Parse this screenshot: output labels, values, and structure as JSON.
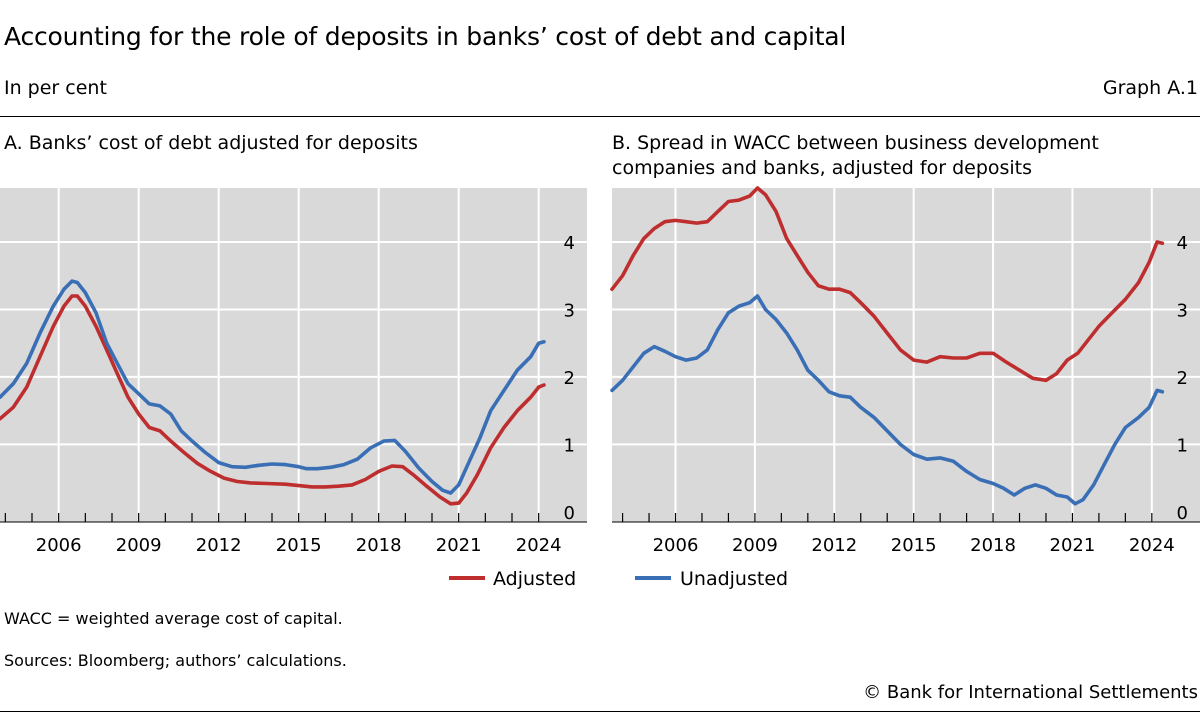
{
  "header": {
    "title": "Accounting for the role of deposits in banks’ cost of debt and capital",
    "subtitle": "In per cent",
    "graph_id": "Graph A.1"
  },
  "colors": {
    "adjusted": "#bf2e2e",
    "unadjusted": "#3a6fb5",
    "panel_bg": "#d9d9d9",
    "grid": "#ffffff"
  },
  "legend": {
    "adjusted_label": "Adjusted",
    "unadjusted_label": "Unadjusted"
  },
  "footer": {
    "note": "WACC = weighted average cost of capital.",
    "sources": "Sources: Bloomberg; authors’ calculations.",
    "copyright": "© Bank for International Settlements"
  },
  "chart_data": [
    {
      "type": "line",
      "title": "A. Banks’ cost of debt adjusted for deposits",
      "xlim": [
        2003.8,
        2024.8
      ],
      "ylim": [
        -0.15,
        4.8
      ],
      "xticks": [
        2006,
        2009,
        2012,
        2015,
        2018,
        2021,
        2024
      ],
      "yticks": [
        0,
        1,
        2,
        3,
        4
      ],
      "grid": true,
      "series": [
        {
          "name": "Adjusted",
          "points": [
            [
              2003.8,
              1.38
            ],
            [
              2004.3,
              1.55
            ],
            [
              2004.8,
              1.85
            ],
            [
              2005.3,
              2.3
            ],
            [
              2005.8,
              2.75
            ],
            [
              2006.2,
              3.05
            ],
            [
              2006.5,
              3.2
            ],
            [
              2006.7,
              3.2
            ],
            [
              2007.0,
              3.05
            ],
            [
              2007.4,
              2.75
            ],
            [
              2007.8,
              2.4
            ],
            [
              2008.2,
              2.05
            ],
            [
              2008.6,
              1.7
            ],
            [
              2009.0,
              1.45
            ],
            [
              2009.4,
              1.25
            ],
            [
              2009.8,
              1.2
            ],
            [
              2010.2,
              1.05
            ],
            [
              2010.7,
              0.88
            ],
            [
              2011.2,
              0.72
            ],
            [
              2011.7,
              0.6
            ],
            [
              2012.2,
              0.5
            ],
            [
              2012.7,
              0.45
            ],
            [
              2013.2,
              0.43
            ],
            [
              2013.8,
              0.42
            ],
            [
              2014.5,
              0.41
            ],
            [
              2015.0,
              0.39
            ],
            [
              2015.5,
              0.37
            ],
            [
              2016.0,
              0.37
            ],
            [
              2016.5,
              0.38
            ],
            [
              2017.0,
              0.4
            ],
            [
              2017.5,
              0.48
            ],
            [
              2018.0,
              0.6
            ],
            [
              2018.5,
              0.68
            ],
            [
              2018.9,
              0.67
            ],
            [
              2019.3,
              0.55
            ],
            [
              2019.8,
              0.38
            ],
            [
              2020.3,
              0.22
            ],
            [
              2020.7,
              0.12
            ],
            [
              2021.0,
              0.13
            ],
            [
              2021.3,
              0.28
            ],
            [
              2021.7,
              0.55
            ],
            [
              2022.2,
              0.95
            ],
            [
              2022.7,
              1.25
            ],
            [
              2023.2,
              1.5
            ],
            [
              2023.7,
              1.7
            ],
            [
              2024.0,
              1.85
            ],
            [
              2024.2,
              1.88
            ]
          ]
        },
        {
          "name": "Unadjusted",
          "points": [
            [
              2003.8,
              1.7
            ],
            [
              2004.3,
              1.9
            ],
            [
              2004.8,
              2.2
            ],
            [
              2005.3,
              2.65
            ],
            [
              2005.8,
              3.05
            ],
            [
              2006.2,
              3.3
            ],
            [
              2006.5,
              3.42
            ],
            [
              2006.7,
              3.4
            ],
            [
              2007.0,
              3.25
            ],
            [
              2007.4,
              2.95
            ],
            [
              2007.8,
              2.5
            ],
            [
              2008.2,
              2.2
            ],
            [
              2008.6,
              1.9
            ],
            [
              2009.0,
              1.75
            ],
            [
              2009.4,
              1.6
            ],
            [
              2009.8,
              1.57
            ],
            [
              2010.2,
              1.45
            ],
            [
              2010.6,
              1.2
            ],
            [
              2011.0,
              1.05
            ],
            [
              2011.5,
              0.88
            ],
            [
              2012.0,
              0.73
            ],
            [
              2012.5,
              0.67
            ],
            [
              2013.0,
              0.66
            ],
            [
              2013.5,
              0.69
            ],
            [
              2014.0,
              0.71
            ],
            [
              2014.5,
              0.7
            ],
            [
              2015.0,
              0.67
            ],
            [
              2015.3,
              0.64
            ],
            [
              2015.7,
              0.64
            ],
            [
              2016.2,
              0.66
            ],
            [
              2016.7,
              0.7
            ],
            [
              2017.2,
              0.78
            ],
            [
              2017.7,
              0.95
            ],
            [
              2018.2,
              1.05
            ],
            [
              2018.6,
              1.06
            ],
            [
              2019.0,
              0.9
            ],
            [
              2019.5,
              0.65
            ],
            [
              2020.0,
              0.45
            ],
            [
              2020.4,
              0.32
            ],
            [
              2020.7,
              0.28
            ],
            [
              2021.0,
              0.4
            ],
            [
              2021.4,
              0.75
            ],
            [
              2021.8,
              1.1
            ],
            [
              2022.2,
              1.5
            ],
            [
              2022.7,
              1.8
            ],
            [
              2023.2,
              2.1
            ],
            [
              2023.7,
              2.3
            ],
            [
              2024.0,
              2.5
            ],
            [
              2024.2,
              2.52
            ]
          ]
        }
      ]
    },
    {
      "type": "line",
      "title": "B. Spread in WACC between business development companies and banks, adjusted for deposits",
      "xlim": [
        2003.6,
        2024.8
      ],
      "ylim": [
        -0.15,
        4.8
      ],
      "xticks": [
        2006,
        2009,
        2012,
        2015,
        2018,
        2021,
        2024
      ],
      "yticks": [
        0,
        1,
        2,
        3,
        4
      ],
      "grid": true,
      "series": [
        {
          "name": "Adjusted",
          "points": [
            [
              2003.6,
              3.3
            ],
            [
              2004.0,
              3.5
            ],
            [
              2004.4,
              3.8
            ],
            [
              2004.8,
              4.05
            ],
            [
              2005.2,
              4.2
            ],
            [
              2005.6,
              4.3
            ],
            [
              2006.0,
              4.32
            ],
            [
              2006.4,
              4.3
            ],
            [
              2006.8,
              4.28
            ],
            [
              2007.2,
              4.3
            ],
            [
              2007.6,
              4.45
            ],
            [
              2008.0,
              4.6
            ],
            [
              2008.4,
              4.62
            ],
            [
              2008.8,
              4.68
            ],
            [
              2009.1,
              4.8
            ],
            [
              2009.4,
              4.7
            ],
            [
              2009.8,
              4.45
            ],
            [
              2010.2,
              4.05
            ],
            [
              2010.6,
              3.8
            ],
            [
              2011.0,
              3.55
            ],
            [
              2011.4,
              3.35
            ],
            [
              2011.8,
              3.3
            ],
            [
              2012.2,
              3.3
            ],
            [
              2012.6,
              3.25
            ],
            [
              2013.0,
              3.1
            ],
            [
              2013.5,
              2.9
            ],
            [
              2014.0,
              2.65
            ],
            [
              2014.5,
              2.4
            ],
            [
              2015.0,
              2.25
            ],
            [
              2015.5,
              2.22
            ],
            [
              2016.0,
              2.3
            ],
            [
              2016.5,
              2.28
            ],
            [
              2017.0,
              2.28
            ],
            [
              2017.5,
              2.35
            ],
            [
              2018.0,
              2.35
            ],
            [
              2018.5,
              2.22
            ],
            [
              2019.0,
              2.1
            ],
            [
              2019.5,
              1.98
            ],
            [
              2020.0,
              1.95
            ],
            [
              2020.4,
              2.05
            ],
            [
              2020.8,
              2.25
            ],
            [
              2021.2,
              2.35
            ],
            [
              2021.6,
              2.55
            ],
            [
              2022.0,
              2.75
            ],
            [
              2022.5,
              2.95
            ],
            [
              2023.0,
              3.15
            ],
            [
              2023.5,
              3.4
            ],
            [
              2023.9,
              3.7
            ],
            [
              2024.2,
              4.0
            ],
            [
              2024.4,
              3.98
            ]
          ]
        },
        {
          "name": "Unadjusted",
          "points": [
            [
              2003.6,
              1.8
            ],
            [
              2004.0,
              1.95
            ],
            [
              2004.4,
              2.15
            ],
            [
              2004.8,
              2.35
            ],
            [
              2005.2,
              2.45
            ],
            [
              2005.6,
              2.38
            ],
            [
              2006.0,
              2.3
            ],
            [
              2006.4,
              2.25
            ],
            [
              2006.8,
              2.28
            ],
            [
              2007.2,
              2.4
            ],
            [
              2007.6,
              2.7
            ],
            [
              2008.0,
              2.95
            ],
            [
              2008.4,
              3.05
            ],
            [
              2008.8,
              3.1
            ],
            [
              2009.1,
              3.2
            ],
            [
              2009.4,
              3.0
            ],
            [
              2009.8,
              2.85
            ],
            [
              2010.2,
              2.65
            ],
            [
              2010.6,
              2.4
            ],
            [
              2011.0,
              2.1
            ],
            [
              2011.4,
              1.95
            ],
            [
              2011.8,
              1.78
            ],
            [
              2012.2,
              1.72
            ],
            [
              2012.6,
              1.7
            ],
            [
              2013.0,
              1.55
            ],
            [
              2013.5,
              1.4
            ],
            [
              2014.0,
              1.2
            ],
            [
              2014.5,
              1.0
            ],
            [
              2015.0,
              0.85
            ],
            [
              2015.5,
              0.78
            ],
            [
              2016.0,
              0.8
            ],
            [
              2016.5,
              0.75
            ],
            [
              2017.0,
              0.6
            ],
            [
              2017.5,
              0.48
            ],
            [
              2018.0,
              0.42
            ],
            [
              2018.4,
              0.35
            ],
            [
              2018.8,
              0.25
            ],
            [
              2019.2,
              0.35
            ],
            [
              2019.6,
              0.4
            ],
            [
              2020.0,
              0.35
            ],
            [
              2020.4,
              0.25
            ],
            [
              2020.8,
              0.22
            ],
            [
              2021.1,
              0.12
            ],
            [
              2021.4,
              0.18
            ],
            [
              2021.8,
              0.4
            ],
            [
              2022.2,
              0.7
            ],
            [
              2022.6,
              1.0
            ],
            [
              2023.0,
              1.25
            ],
            [
              2023.5,
              1.4
            ],
            [
              2023.9,
              1.55
            ],
            [
              2024.2,
              1.8
            ],
            [
              2024.4,
              1.78
            ]
          ]
        }
      ]
    }
  ]
}
